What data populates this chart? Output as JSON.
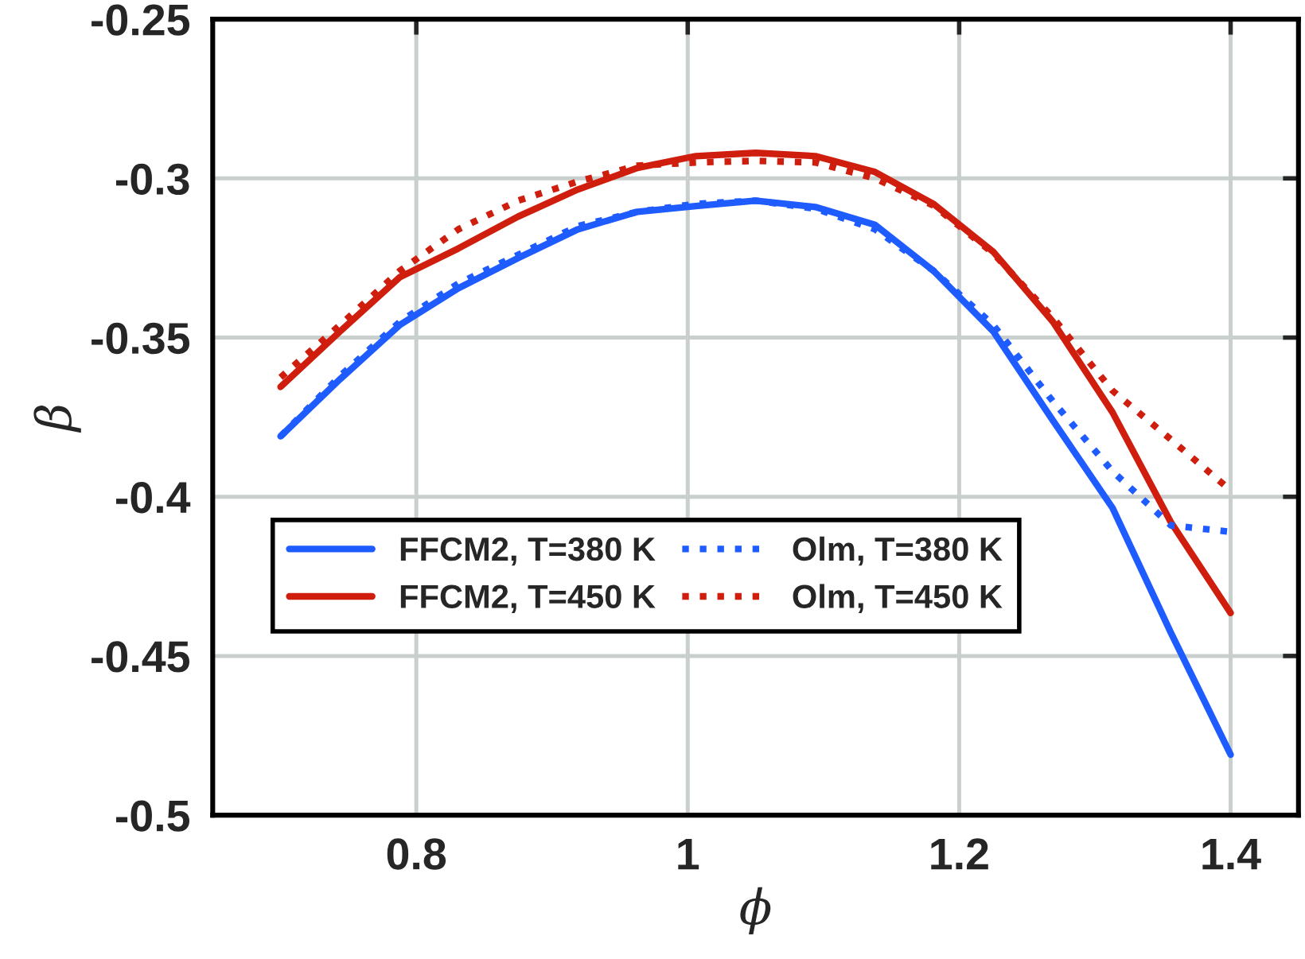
{
  "chart_data": {
    "type": "line",
    "xlabel": "ϕ",
    "ylabel": "β",
    "x": [
      0.7,
      0.744,
      0.788,
      0.831,
      0.875,
      0.919,
      0.963,
      1.006,
      1.05,
      1.094,
      1.138,
      1.181,
      1.225,
      1.269,
      1.313,
      1.356,
      1.4
    ],
    "series": [
      {
        "name": "FFCM2, T=380 K",
        "color": "#1f5cff",
        "line_style": "solid",
        "values": [
          -0.381,
          -0.363,
          -0.346,
          -0.3345,
          -0.325,
          -0.316,
          -0.3105,
          -0.3087,
          -0.307,
          -0.309,
          -0.3146,
          -0.329,
          -0.348,
          -0.376,
          -0.4035,
          -0.4427,
          -0.481
        ]
      },
      {
        "name": "FFCM2, T=450 K",
        "color": "#d01e0e",
        "line_style": "solid",
        "values": [
          -0.3655,
          -0.348,
          -0.331,
          -0.322,
          -0.312,
          -0.3035,
          -0.2967,
          -0.293,
          -0.292,
          -0.293,
          -0.298,
          -0.308,
          -0.323,
          -0.345,
          -0.3735,
          -0.408,
          -0.4365
        ]
      },
      {
        "name": "Olm, T=380 K",
        "color": "#1f5cff",
        "line_style": "dotted",
        "values": [
          -0.381,
          -0.362,
          -0.345,
          -0.333,
          -0.324,
          -0.315,
          -0.3105,
          -0.308,
          -0.307,
          -0.3095,
          -0.316,
          -0.329,
          -0.346,
          -0.37,
          -0.392,
          -0.409,
          -0.411
        ]
      },
      {
        "name": "Olm, T=450 K",
        "color": "#d01e0e",
        "line_style": "dotted",
        "values": [
          -0.3625,
          -0.346,
          -0.329,
          -0.316,
          -0.307,
          -0.301,
          -0.296,
          -0.295,
          -0.2945,
          -0.295,
          -0.3,
          -0.3085,
          -0.3235,
          -0.3437,
          -0.3667,
          -0.382,
          -0.398
        ]
      }
    ],
    "xlim": [
      0.65,
      1.45
    ],
    "ylim": [
      -0.5,
      -0.25
    ],
    "xticks": [
      0.8,
      1,
      1.2,
      1.4
    ],
    "yticks": [
      -0.5,
      -0.45,
      -0.4,
      -0.35,
      -0.3,
      -0.25
    ],
    "grid": true,
    "legend": "bottom left"
  }
}
